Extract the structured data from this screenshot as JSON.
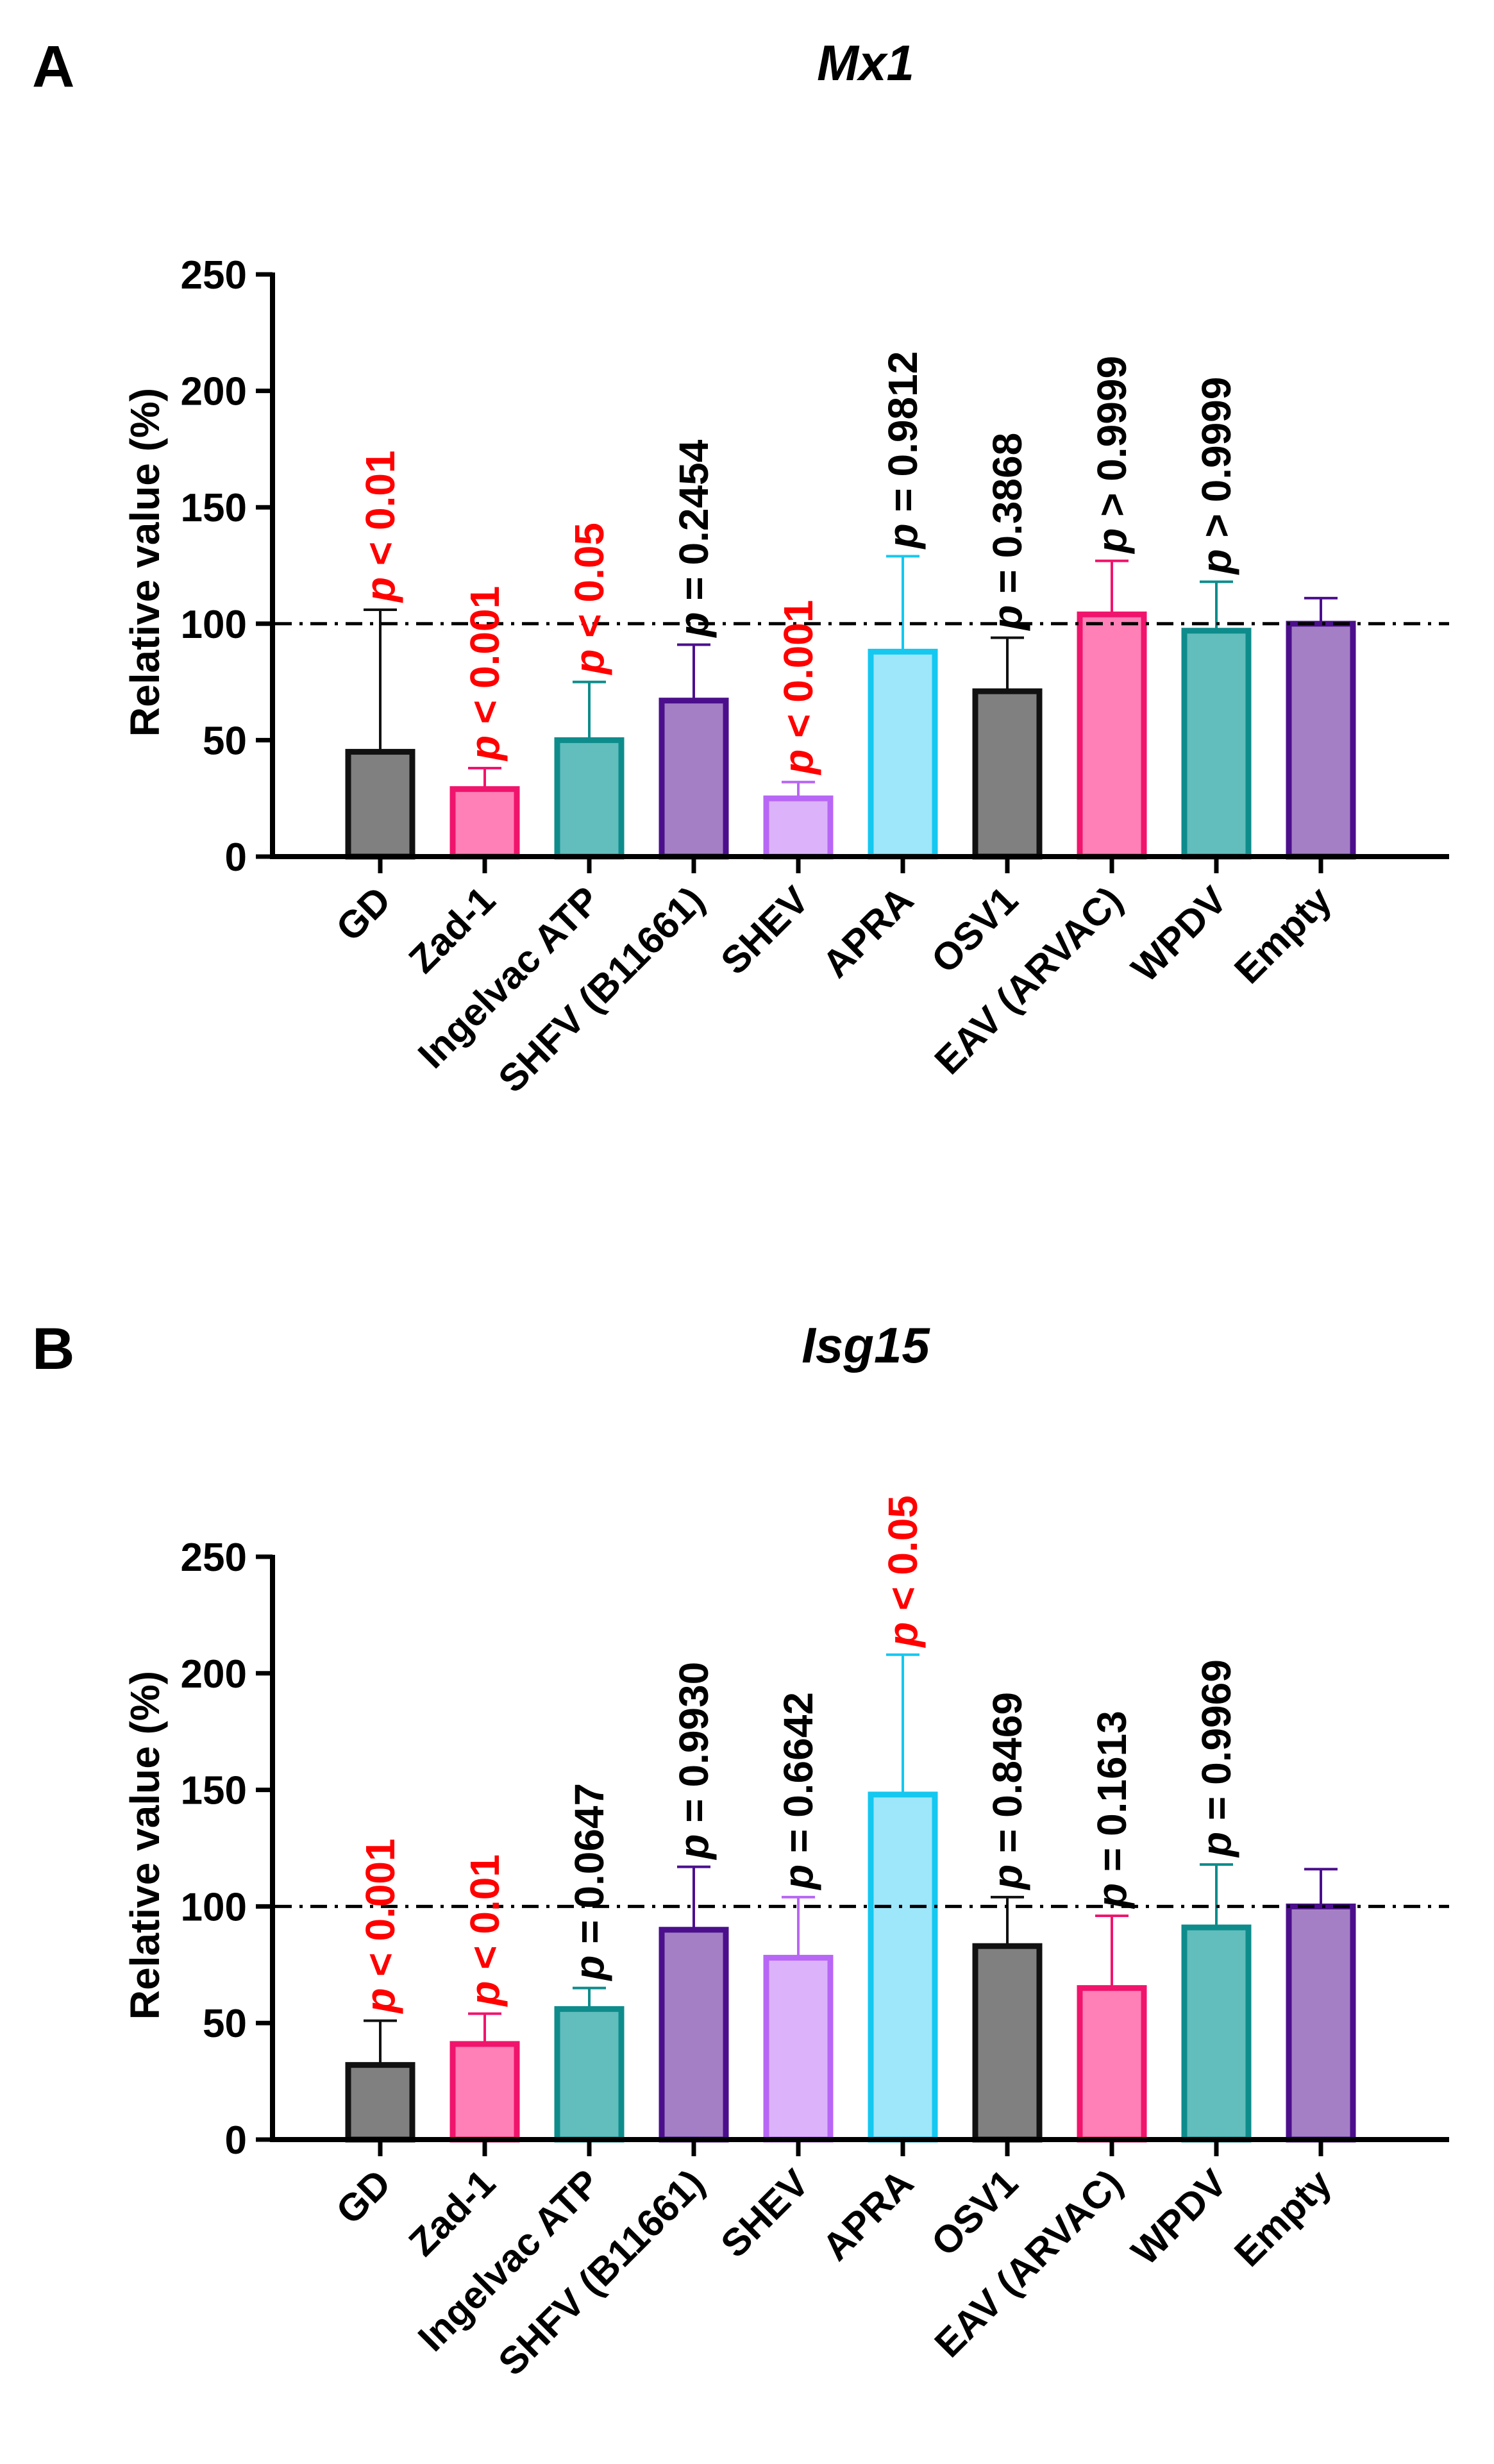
{
  "palette": {
    "axis": "#000000",
    "sig": "#ff0000",
    "nonsig": "#000000",
    "gray_fill": "#808080",
    "gray_edge": "#111111",
    "pink_fill": "#ff80b6",
    "pink_edge": "#f0146c",
    "teal_fill": "#62bdbd",
    "teal_edge": "#0e8c8c",
    "purple_fill": "#a57fc5",
    "purple_edge": "#4b0f8c",
    "lilac_fill": "#dcb3fa",
    "lilac_edge": "#b866f5",
    "cyan_fill": "#9ee6fa",
    "cyan_edge": "#14c8f0"
  },
  "chart_data": [
    {
      "panel_label": "A",
      "title": "Mx1",
      "type": "bar",
      "ylabel": "Relative value (%)",
      "ylim": [
        0,
        250
      ],
      "yticks": [
        "0",
        "50",
        "100",
        "150",
        "200",
        "250"
      ],
      "reference_line": 100,
      "categories": [
        "GD",
        "Zad-1",
        "Ingelvac ATP",
        "SHFV (B11661)",
        "SHEV",
        "APRA",
        "OSV1",
        "EAV (ARVAC)",
        "WPDV",
        "Empty"
      ],
      "values": [
        45,
        29,
        50,
        67,
        25,
        88,
        71,
        104,
        97,
        100
      ],
      "error_upper": [
        106,
        38,
        75,
        91,
        32,
        129,
        94,
        127,
        118,
        111
      ],
      "colors": [
        "gray",
        "pink",
        "teal",
        "purple",
        "lilac",
        "cyan",
        "gray",
        "pink",
        "teal",
        "purple"
      ],
      "annotations": [
        "p < 0.01",
        "p < 0.001",
        "p < 0.05",
        "p = 0.2454",
        "p < 0.001",
        "p = 0.9812",
        "p = 0.3868",
        "p > 0.9999",
        "p > 0.9999",
        ""
      ],
      "significant": [
        true,
        true,
        true,
        false,
        true,
        false,
        false,
        false,
        false,
        false
      ]
    },
    {
      "panel_label": "B",
      "title": "Isg15",
      "type": "bar",
      "ylabel": "Relative value (%)",
      "ylim": [
        0,
        250
      ],
      "yticks": [
        "0",
        "50",
        "100",
        "150",
        "200",
        "250"
      ],
      "reference_line": 100,
      "categories": [
        "GD",
        "Zad-1",
        "Ingelvac ATP",
        "SHFV (B11661)",
        "SHEV",
        "APRA",
        "OSV1",
        "EAV (ARVAC)",
        "WPDV",
        "Empty"
      ],
      "values": [
        32,
        41,
        56,
        90,
        78,
        148,
        83,
        65,
        91,
        100
      ],
      "error_upper": [
        51,
        54,
        65,
        117,
        104,
        208,
        104,
        96,
        118,
        116
      ],
      "colors": [
        "gray",
        "pink",
        "teal",
        "purple",
        "lilac",
        "cyan",
        "gray",
        "pink",
        "teal",
        "purple"
      ],
      "annotations": [
        "p < 0.001",
        "p < 0.01",
        "p = 0.0647",
        "p = 0.9930",
        "p = 0.6642",
        "p < 0.05",
        "p = 0.8469",
        "p = 0.1613",
        "p = 0.9969",
        ""
      ],
      "significant": [
        true,
        true,
        false,
        false,
        false,
        true,
        false,
        false,
        false,
        false
      ]
    }
  ]
}
